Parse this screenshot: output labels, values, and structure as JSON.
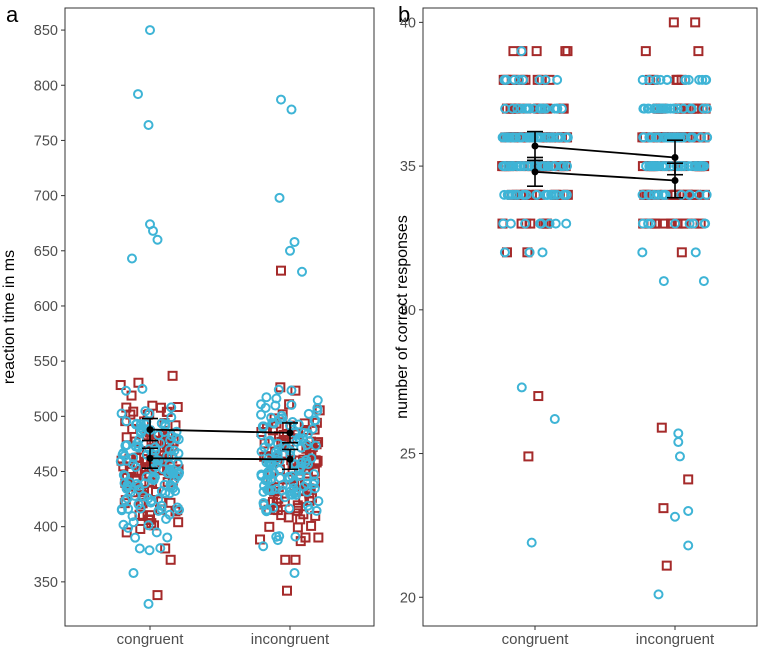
{
  "chart_data": [
    {
      "panel": "a",
      "type": "scatter",
      "title": "",
      "xlabel": "",
      "ylabel": "reaction time in ms",
      "categories": [
        "congruent",
        "incongruent"
      ],
      "ylim": [
        310,
        870
      ],
      "yticks": [
        350,
        400,
        450,
        500,
        550,
        600,
        650,
        700,
        750,
        800,
        850
      ],
      "grid": false,
      "colors": {
        "circle": "#3eb4d6",
        "square": "#a52a2a",
        "mean": "#000000"
      },
      "series": [
        {
          "name": "circle group",
          "marker": "circle",
          "means": [
            488,
            485
          ],
          "errors": [
            10,
            9
          ],
          "outliers": [
            [
              0,
              850,
              0.0
            ],
            [
              0,
              792,
              -0.4
            ],
            [
              0,
              764,
              -0.05
            ],
            [
              0,
              674,
              0.0
            ],
            [
              0,
              668,
              0.1
            ],
            [
              0,
              660,
              0.25
            ],
            [
              0,
              643,
              -0.6
            ],
            [
              0,
              330,
              -0.05
            ],
            [
              0,
              358,
              -0.55
            ],
            [
              1,
              787,
              -0.3
            ],
            [
              1,
              778,
              0.05
            ],
            [
              1,
              698,
              -0.35
            ],
            [
              1,
              658,
              0.15
            ],
            [
              1,
              650,
              0.0
            ],
            [
              1,
              631,
              0.4
            ],
            [
              1,
              358,
              0.15
            ]
          ]
        },
        {
          "name": "square group",
          "marker": "square",
          "means": [
            462,
            461
          ],
          "errors": [
            9,
            9
          ],
          "outliers": [
            [
              0,
              338,
              0.25
            ],
            [
              1,
              342,
              -0.1
            ],
            [
              1,
              632,
              -0.3
            ]
          ]
        }
      ]
    },
    {
      "panel": "b",
      "type": "scatter",
      "title": "",
      "xlabel": "",
      "ylabel": "number of correct responses",
      "categories": [
        "congruent",
        "incongruent"
      ],
      "ylim": [
        19,
        40.5
      ],
      "yticks": [
        20,
        25,
        30,
        35,
        40
      ],
      "grid": false,
      "colors": {
        "circle": "#3eb4d6",
        "square": "#a52a2a",
        "mean": "#000000"
      },
      "series": [
        {
          "name": "circle group",
          "marker": "circle",
          "means": [
            35.7,
            35.3
          ],
          "errors": [
            0.5,
            0.6
          ],
          "outliers": [
            [
              0,
              21.9,
              -0.1
            ],
            [
              0,
              26.2,
              0.6
            ],
            [
              0,
              27.3,
              -0.4
            ],
            [
              1,
              20.1,
              -0.5
            ],
            [
              1,
              22.8,
              0.0
            ],
            [
              1,
              21.8,
              0.4
            ],
            [
              1,
              23.0,
              0.4
            ],
            [
              1,
              24.9,
              0.15
            ],
            [
              1,
              25.4,
              0.1
            ],
            [
              1,
              25.7,
              0.1
            ]
          ]
        },
        {
          "name": "square group",
          "marker": "square",
          "means": [
            34.8,
            34.5
          ],
          "errors": [
            0.5,
            0.6
          ],
          "outliers": [
            [
              0,
              24.9,
              -0.2
            ],
            [
              0,
              27.0,
              0.1
            ],
            [
              1,
              21.1,
              -0.25
            ],
            [
              1,
              23.1,
              -0.35
            ],
            [
              1,
              24.1,
              0.4
            ],
            [
              1,
              25.9,
              -0.4
            ]
          ]
        }
      ]
    }
  ]
}
